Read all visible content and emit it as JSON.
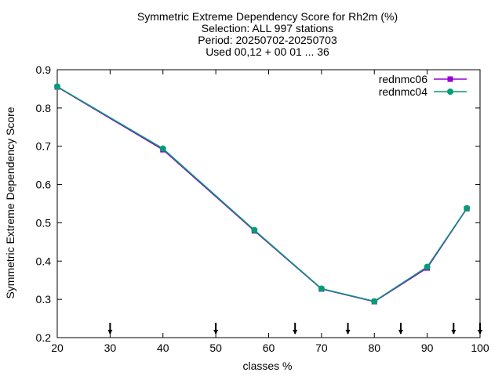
{
  "chart_data": {
    "type": "line",
    "title_lines": [
      "Symmetric Extreme Dependency Score  for Rh2m (%)",
      "Selection: ALL    997 stations",
      "Period: 20250702-20250703",
      "Used 00,12 + 00 01 ... 36"
    ],
    "xlabel": "classes %",
    "ylabel": "Symmetric Extreme Dependency Score",
    "xlim": [
      20,
      100
    ],
    "ylim": [
      0.2,
      0.9
    ],
    "xticks": [
      "20",
      "30",
      "40",
      "50",
      "60",
      "70",
      "80",
      "90",
      "100"
    ],
    "yticks": [
      "0.2",
      "0.3",
      "0.4",
      "0.5",
      "0.6",
      "0.7",
      "0.8",
      "0.9"
    ],
    "x": [
      20,
      40,
      57.3,
      70,
      80,
      90,
      97.5
    ],
    "series": [
      {
        "name": "rednmc06",
        "color": "#9400d3",
        "values": [
          0.855,
          0.691,
          0.479,
          0.327,
          0.294,
          0.382,
          0.537
        ]
      },
      {
        "name": "rednmc04",
        "color": "#009e73",
        "values": [
          0.856,
          0.694,
          0.481,
          0.328,
          0.295,
          0.385,
          0.538
        ]
      }
    ],
    "threshold_markers_x": [
      30,
      50,
      65,
      75,
      85,
      95,
      100
    ],
    "legend_position": "top-right"
  }
}
